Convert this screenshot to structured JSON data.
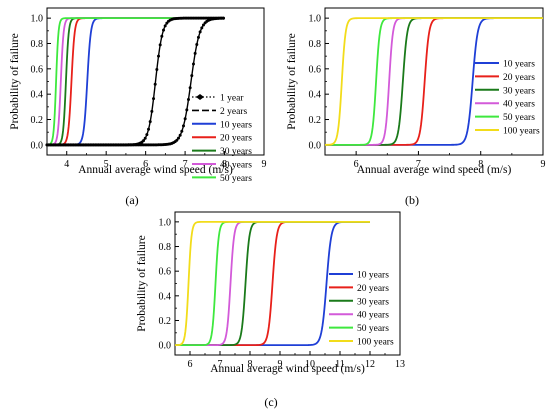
{
  "chart_data": [
    {
      "type": "line",
      "panel_label": "(a)",
      "xlabel": "Annual average wind speed (m/s)",
      "ylabel": "Probability of failure",
      "xlim": [
        3.5,
        9
      ],
      "ylim": [
        -0.08,
        1.08
      ],
      "xticks": [
        4,
        5,
        6,
        7,
        8,
        9
      ],
      "yticks": [
        0.0,
        0.2,
        0.4,
        0.6,
        0.8,
        1.0
      ],
      "x_end": 8.0,
      "grid": false,
      "legend_position": "right",
      "series": [
        {
          "name": "1 year",
          "color": "#000000",
          "dash": "dot-marker",
          "midpoint": 7.15,
          "width": 0.11
        },
        {
          "name": "2 years",
          "color": "#000000",
          "dash": "dot-marker",
          "midpoint": 6.25,
          "width": 0.09
        },
        {
          "name": "10 years",
          "color": "#1f3fd6",
          "dash": "solid",
          "midpoint": 4.52,
          "width": 0.045
        },
        {
          "name": "20 years",
          "color": "#e8201a",
          "dash": "solid",
          "midpoint": 4.12,
          "width": 0.04
        },
        {
          "name": "30 years",
          "color": "#1a7a1a",
          "dash": "solid",
          "midpoint": 3.98,
          "width": 0.035
        },
        {
          "name": "40 years",
          "color": "#d35ad9",
          "dash": "solid",
          "midpoint": 3.85,
          "width": 0.035
        },
        {
          "name": "50 years",
          "color": "#3ee83e",
          "dash": "solid",
          "midpoint": 3.73,
          "width": 0.03
        }
      ]
    },
    {
      "type": "line",
      "panel_label": "(b)",
      "xlabel": "Annual average wind speed (m/s)",
      "ylabel": "Probability of failure",
      "xlim": [
        5.5,
        9
      ],
      "ylim": [
        -0.08,
        1.08
      ],
      "xticks": [
        6,
        7,
        8,
        9
      ],
      "yticks": [
        0.0,
        0.2,
        0.4,
        0.6,
        0.8,
        1.0
      ],
      "x_end": 9.0,
      "grid": false,
      "legend_position": "right",
      "series": [
        {
          "name": "10 years",
          "color": "#1f3fd6",
          "dash": "solid",
          "midpoint": 7.87,
          "width": 0.04
        },
        {
          "name": "20 years",
          "color": "#e8201a",
          "dash": "solid",
          "midpoint": 7.1,
          "width": 0.035
        },
        {
          "name": "30 years",
          "color": "#1a7a1a",
          "dash": "solid",
          "midpoint": 6.75,
          "width": 0.035
        },
        {
          "name": "40 years",
          "color": "#d35ad9",
          "dash": "solid",
          "midpoint": 6.53,
          "width": 0.03
        },
        {
          "name": "50 years",
          "color": "#3ee83e",
          "dash": "solid",
          "midpoint": 6.32,
          "width": 0.03
        },
        {
          "name": "100 years",
          "color": "#f2dc1a",
          "dash": "solid",
          "midpoint": 5.77,
          "width": 0.03
        }
      ]
    },
    {
      "type": "line",
      "panel_label": "(c)",
      "xlabel": "Annual average wind speed (m/s)",
      "ylabel": "Probability of failure",
      "xlim": [
        5.5,
        13
      ],
      "ylim": [
        -0.08,
        1.08
      ],
      "xticks": [
        6,
        7,
        8,
        9,
        10,
        11,
        12,
        13
      ],
      "yticks": [
        0.0,
        0.2,
        0.4,
        0.6,
        0.8,
        1.0
      ],
      "x_end": 12.0,
      "grid": false,
      "legend_position": "right",
      "series": [
        {
          "name": "10 years",
          "color": "#1f3fd6",
          "dash": "solid",
          "midpoint": 10.55,
          "width": 0.08
        },
        {
          "name": "20 years",
          "color": "#e8201a",
          "dash": "solid",
          "midpoint": 8.75,
          "width": 0.07
        },
        {
          "name": "30 years",
          "color": "#1a7a1a",
          "dash": "solid",
          "midpoint": 7.85,
          "width": 0.065
        },
        {
          "name": "40 years",
          "color": "#d35ad9",
          "dash": "solid",
          "midpoint": 7.35,
          "width": 0.06
        },
        {
          "name": "50 years",
          "color": "#3ee83e",
          "dash": "solid",
          "midpoint": 6.85,
          "width": 0.055
        },
        {
          "name": "100 years",
          "color": "#f2dc1a",
          "dash": "solid",
          "midpoint": 5.95,
          "width": 0.05
        }
      ]
    }
  ]
}
